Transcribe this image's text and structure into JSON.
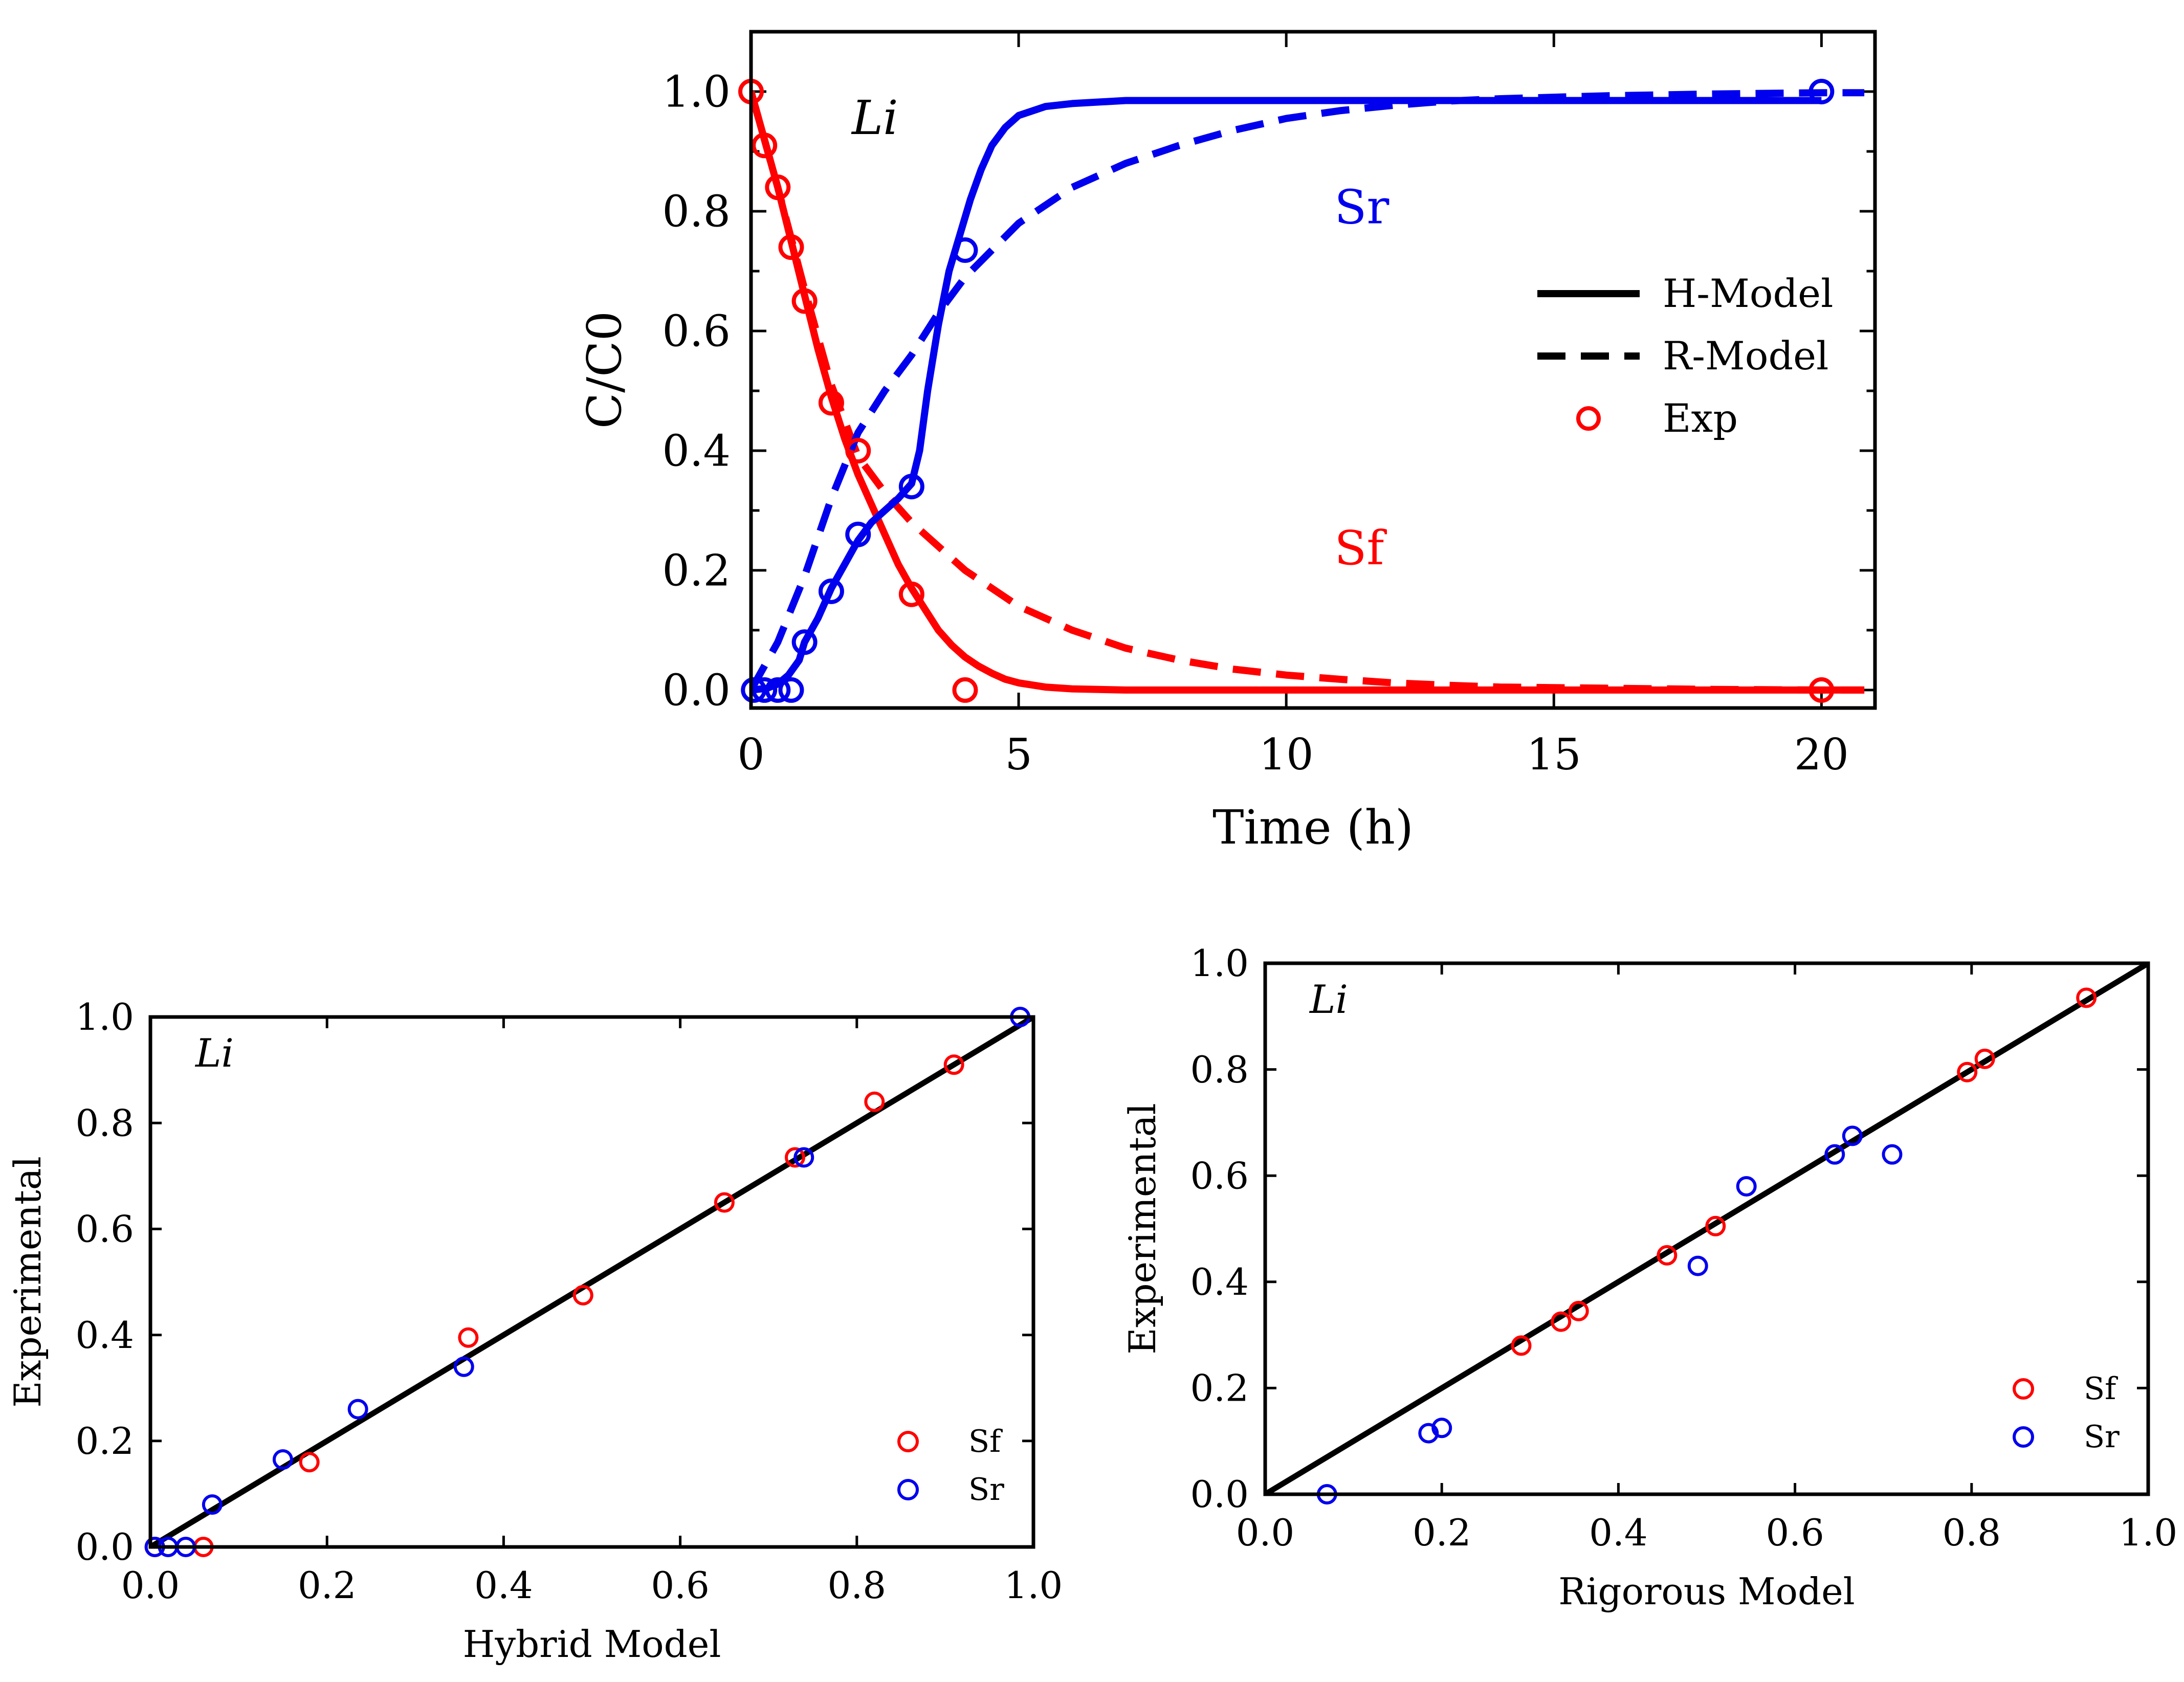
{
  "colors": {
    "sf": "#ff0000",
    "sr": "#0000ee",
    "model": "#000000",
    "exp_legend": "#ff0000"
  },
  "chart_data": [
    {
      "id": "top",
      "type": "line",
      "tag": "Li",
      "xlabel": "Time (h)",
      "ylabel": "C/C0",
      "xlim": [
        0,
        21
      ],
      "ylim": [
        -0.03,
        1.1
      ],
      "xticks": [
        0,
        5,
        10,
        15,
        20
      ],
      "xtick_labels": [
        "0",
        "5",
        "10",
        "15",
        "20"
      ],
      "yticks": [
        0,
        0.2,
        0.4,
        0.6,
        0.8,
        1.0
      ],
      "ytick_labels": [
        "0.0",
        "0.2",
        "0.4",
        "0.6",
        "0.8",
        "1.0"
      ],
      "legend": [
        {
          "label": "H-Model",
          "style": "solid"
        },
        {
          "label": "R-Model",
          "style": "dashed"
        },
        {
          "label": "Exp",
          "style": "marker"
        }
      ],
      "series_labels": [
        {
          "text": "Sr",
          "color_key": "sr",
          "x": 10.9,
          "y": 0.78
        },
        {
          "text": "Sf",
          "color_key": "sf",
          "x": 10.9,
          "y": 0.21
        }
      ],
      "series": [
        {
          "name": "Sf H-Model",
          "color_key": "sf",
          "style": "solid",
          "x": [
            0,
            0.25,
            0.5,
            0.75,
            1.0,
            1.25,
            1.5,
            1.75,
            2.0,
            2.25,
            2.5,
            2.75,
            3.0,
            3.25,
            3.5,
            3.75,
            4.0,
            4.25,
            4.5,
            4.75,
            5.0,
            5.5,
            6.0,
            7.0,
            8.0,
            10.0,
            14.0,
            18.0,
            20.0,
            20.8
          ],
          "y": [
            1.0,
            0.92,
            0.84,
            0.75,
            0.66,
            0.57,
            0.49,
            0.42,
            0.36,
            0.31,
            0.26,
            0.21,
            0.17,
            0.135,
            0.1,
            0.075,
            0.055,
            0.04,
            0.028,
            0.018,
            0.012,
            0.005,
            0.002,
            0.0,
            0.0,
            0.0,
            0.0,
            0.0,
            0.0,
            0.0
          ]
        },
        {
          "name": "Sf R-Model",
          "color_key": "sf",
          "style": "dashed",
          "x": [
            0,
            0.5,
            1.0,
            1.5,
            2.0,
            2.5,
            3.0,
            3.5,
            4.0,
            5.0,
            6.0,
            7.0,
            8.0,
            9.0,
            10.0,
            11.0,
            12.0,
            13.0,
            14.0,
            16.0,
            18.0,
            20.0,
            20.8
          ],
          "y": [
            1.0,
            0.84,
            0.67,
            0.51,
            0.39,
            0.33,
            0.28,
            0.24,
            0.2,
            0.14,
            0.1,
            0.07,
            0.05,
            0.035,
            0.025,
            0.018,
            0.012,
            0.008,
            0.005,
            0.003,
            0.001,
            0.0,
            0.0
          ]
        },
        {
          "name": "Sr H-Model",
          "color_key": "sr",
          "style": "solid",
          "x": [
            0,
            0.3,
            0.5,
            0.7,
            0.9,
            1.0,
            1.25,
            1.5,
            1.75,
            2.0,
            2.25,
            2.5,
            2.75,
            3.0,
            3.15,
            3.3,
            3.5,
            3.7,
            3.9,
            4.1,
            4.3,
            4.5,
            4.75,
            5.0,
            5.5,
            6.0,
            7.0,
            8.0,
            10.0,
            14.0,
            18.0,
            20.0
          ],
          "y": [
            0.0,
            0.003,
            0.01,
            0.025,
            0.05,
            0.08,
            0.12,
            0.17,
            0.21,
            0.25,
            0.28,
            0.3,
            0.32,
            0.345,
            0.4,
            0.5,
            0.61,
            0.7,
            0.76,
            0.82,
            0.87,
            0.91,
            0.94,
            0.96,
            0.975,
            0.98,
            0.985,
            0.985,
            0.985,
            0.985,
            0.985,
            0.985
          ]
        },
        {
          "name": "Sr R-Model",
          "color_key": "sr",
          "style": "dashed",
          "x": [
            0,
            0.5,
            1.0,
            1.5,
            2.0,
            2.5,
            3.0,
            3.5,
            4.0,
            5.0,
            6.0,
            7.0,
            8.0,
            9.0,
            10.0,
            11.0,
            12.0,
            13.0,
            14.0,
            16.0,
            18.0,
            20.0,
            20.8
          ],
          "y": [
            0.0,
            0.08,
            0.19,
            0.32,
            0.43,
            0.5,
            0.56,
            0.63,
            0.69,
            0.78,
            0.84,
            0.88,
            0.91,
            0.935,
            0.955,
            0.968,
            0.977,
            0.984,
            0.988,
            0.993,
            0.996,
            0.998,
            0.998
          ]
        },
        {
          "name": "Sf Exp",
          "color_key": "sf",
          "style": "marker",
          "x": [
            0,
            0.25,
            0.5,
            0.75,
            1.0,
            1.5,
            2.0,
            3.0,
            4.0,
            20.0
          ],
          "y": [
            1.0,
            0.91,
            0.84,
            0.74,
            0.65,
            0.48,
            0.4,
            0.16,
            0.0,
            0.0
          ]
        },
        {
          "name": "Sr Exp",
          "color_key": "sr",
          "style": "marker",
          "x": [
            0.05,
            0.25,
            0.5,
            0.75,
            1.0,
            1.5,
            2.0,
            3.0,
            4.0,
            20.0
          ],
          "y": [
            0.0,
            0.0,
            0.0,
            0.0,
            0.08,
            0.165,
            0.26,
            0.34,
            0.735,
            1.0
          ]
        }
      ]
    },
    {
      "id": "bottom-left",
      "type": "scatter",
      "tag": "Li",
      "xlabel": "Hybrid Model",
      "ylabel": "Experimental",
      "xlim": [
        0,
        1
      ],
      "ylim": [
        0,
        1
      ],
      "xticks": [
        0,
        0.2,
        0.4,
        0.6,
        0.8,
        1.0
      ],
      "xtick_labels": [
        "0.0",
        "0.2",
        "0.4",
        "0.6",
        "0.8",
        "1.0"
      ],
      "yticks": [
        0,
        0.2,
        0.4,
        0.6,
        0.8,
        1.0
      ],
      "ytick_labels": [
        "0.0",
        "0.2",
        "0.4",
        "0.6",
        "0.8",
        "1.0"
      ],
      "legend": [
        {
          "label": "Sf",
          "color_key": "sf"
        },
        {
          "label": "Sr",
          "color_key": "sr"
        }
      ],
      "line": {
        "x": [
          0,
          1
        ],
        "y": [
          0,
          1
        ]
      },
      "series": [
        {
          "name": "Sf",
          "color_key": "sf",
          "x": [
            0.005,
            0.06,
            0.18,
            0.36,
            0.49,
            0.65,
            0.73,
            0.82,
            0.91
          ],
          "y": [
            0.0,
            0.0,
            0.16,
            0.395,
            0.475,
            0.65,
            0.735,
            0.84,
            0.91
          ]
        },
        {
          "name": "Sr",
          "color_key": "sr",
          "x": [
            0.005,
            0.02,
            0.04,
            0.07,
            0.15,
            0.235,
            0.355,
            0.74,
            0.985
          ],
          "y": [
            0.0,
            0.0,
            0.0,
            0.08,
            0.165,
            0.26,
            0.34,
            0.735,
            1.0
          ]
        }
      ]
    },
    {
      "id": "bottom-right",
      "type": "scatter",
      "tag": "Li",
      "xlabel": "Rigorous Model",
      "ylabel": "Experimental",
      "xlim": [
        0,
        1
      ],
      "ylim": [
        0,
        1
      ],
      "xticks": [
        0,
        0.2,
        0.4,
        0.6,
        0.8,
        1.0
      ],
      "xtick_labels": [
        "0.0",
        "0.2",
        "0.4",
        "0.6",
        "0.8",
        "1.0"
      ],
      "yticks": [
        0,
        0.2,
        0.4,
        0.6,
        0.8,
        1.0
      ],
      "ytick_labels": [
        "0.0",
        "0.2",
        "0.4",
        "0.6",
        "0.8",
        "1.0"
      ],
      "legend": [
        {
          "label": "Sf",
          "color_key": "sf"
        },
        {
          "label": "Sr",
          "color_key": "sr"
        }
      ],
      "line": {
        "x": [
          0,
          1
        ],
        "y": [
          0,
          1
        ]
      },
      "series": [
        {
          "name": "Sf",
          "color_key": "sf",
          "x": [
            0.29,
            0.335,
            0.355,
            0.455,
            0.51,
            0.795,
            0.815,
            0.93
          ],
          "y": [
            0.28,
            0.325,
            0.345,
            0.45,
            0.505,
            0.795,
            0.82,
            0.935
          ]
        },
        {
          "name": "Sr",
          "color_key": "sr",
          "x": [
            0.07,
            0.185,
            0.2,
            0.49,
            0.545,
            0.645,
            0.665,
            0.71
          ],
          "y": [
            0.0,
            0.115,
            0.125,
            0.43,
            0.58,
            0.64,
            0.675,
            0.64
          ]
        }
      ]
    }
  ]
}
